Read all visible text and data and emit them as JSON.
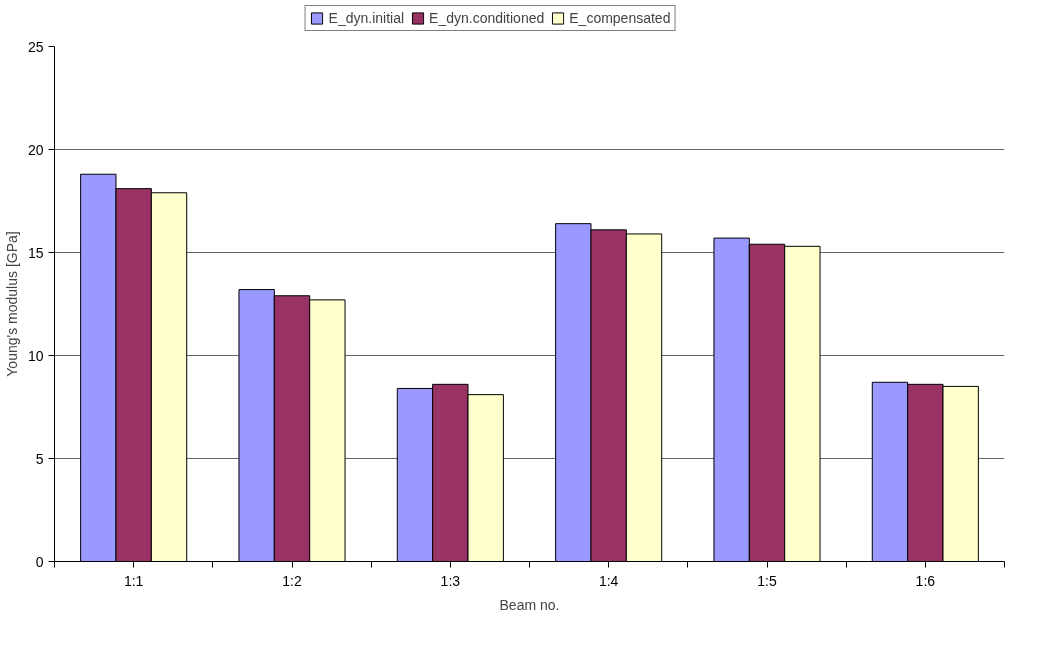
{
  "chart_data": {
    "type": "bar",
    "xlabel": "Beam no.",
    "ylabel": "Young's modulus [GPa]",
    "categories": [
      "1:1",
      "1:2",
      "1:3",
      "1:4",
      "1:5",
      "1:6"
    ],
    "series": [
      {
        "name": "E_dyn.initial",
        "color": "#9999ff",
        "values": [
          18.8,
          13.2,
          8.4,
          16.4,
          15.7,
          8.7
        ]
      },
      {
        "name": "E_dyn.conditioned",
        "color": "#993366",
        "values": [
          18.1,
          12.9,
          8.6,
          16.1,
          15.4,
          8.6
        ]
      },
      {
        "name": "E_compensated",
        "color": "#ffffcc",
        "values": [
          17.9,
          12.7,
          8.1,
          15.9,
          15.3,
          8.5
        ]
      }
    ],
    "ylim": [
      0,
      25
    ],
    "yticks": [
      0,
      5,
      10,
      15,
      20,
      25
    ],
    "grid": "y",
    "legend": "top"
  }
}
